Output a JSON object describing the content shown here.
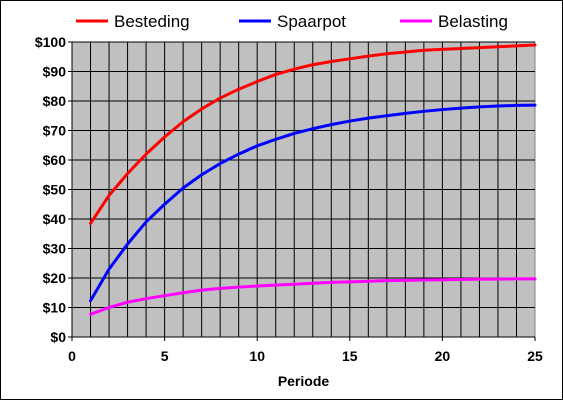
{
  "chart_data": {
    "type": "line",
    "title": "",
    "xlabel": "Periode",
    "ylabel": "",
    "xlim": [
      0,
      25
    ],
    "ylim": [
      0,
      100
    ],
    "x_ticks": [
      0,
      5,
      10,
      15,
      20,
      25
    ],
    "x_tick_labels": [
      "0",
      "5",
      "10",
      "15",
      "20",
      "25"
    ],
    "y_ticks": [
      0,
      10,
      20,
      30,
      40,
      50,
      60,
      70,
      80,
      90,
      100
    ],
    "y_tick_labels": [
      "$0",
      "$10",
      "$20",
      "$30",
      "$40",
      "$50",
      "$60",
      "$70",
      "$80",
      "$90",
      "$100"
    ],
    "grid": true,
    "legend_position": "top",
    "x": [
      1,
      2,
      3,
      4,
      5,
      6,
      7,
      8,
      9,
      10,
      11,
      12,
      13,
      14,
      15,
      16,
      17,
      18,
      19,
      20,
      21,
      22,
      23,
      24,
      25
    ],
    "series": [
      {
        "name": "Besteding",
        "color": "#ff0000",
        "values": [
          38.5,
          48.0,
          55.4,
          62.0,
          67.8,
          73.0,
          77.3,
          81.0,
          84.0,
          86.6,
          89.0,
          90.8,
          92.3,
          93.4,
          94.3,
          95.2,
          96.0,
          96.6,
          97.2,
          97.5,
          97.8,
          98.1,
          98.4,
          98.7,
          99.0
        ]
      },
      {
        "name": "Spaarpot",
        "color": "#0000ff",
        "values": [
          12.3,
          23.0,
          31.5,
          39.0,
          45.0,
          50.5,
          55.0,
          58.8,
          62.0,
          64.8,
          67.0,
          69.0,
          70.6,
          72.0,
          73.2,
          74.2,
          75.0,
          75.8,
          76.5,
          77.1,
          77.6,
          78.0,
          78.3,
          78.5,
          78.6
        ]
      },
      {
        "name": "Belasting",
        "color": "#ff00ff",
        "values": [
          7.7,
          10.0,
          11.8,
          13.0,
          14.0,
          15.0,
          15.9,
          16.5,
          16.9,
          17.3,
          17.6,
          17.9,
          18.2,
          18.5,
          18.7,
          18.9,
          19.1,
          19.2,
          19.3,
          19.4,
          19.5,
          19.6,
          19.6,
          19.7,
          19.7
        ]
      }
    ]
  }
}
